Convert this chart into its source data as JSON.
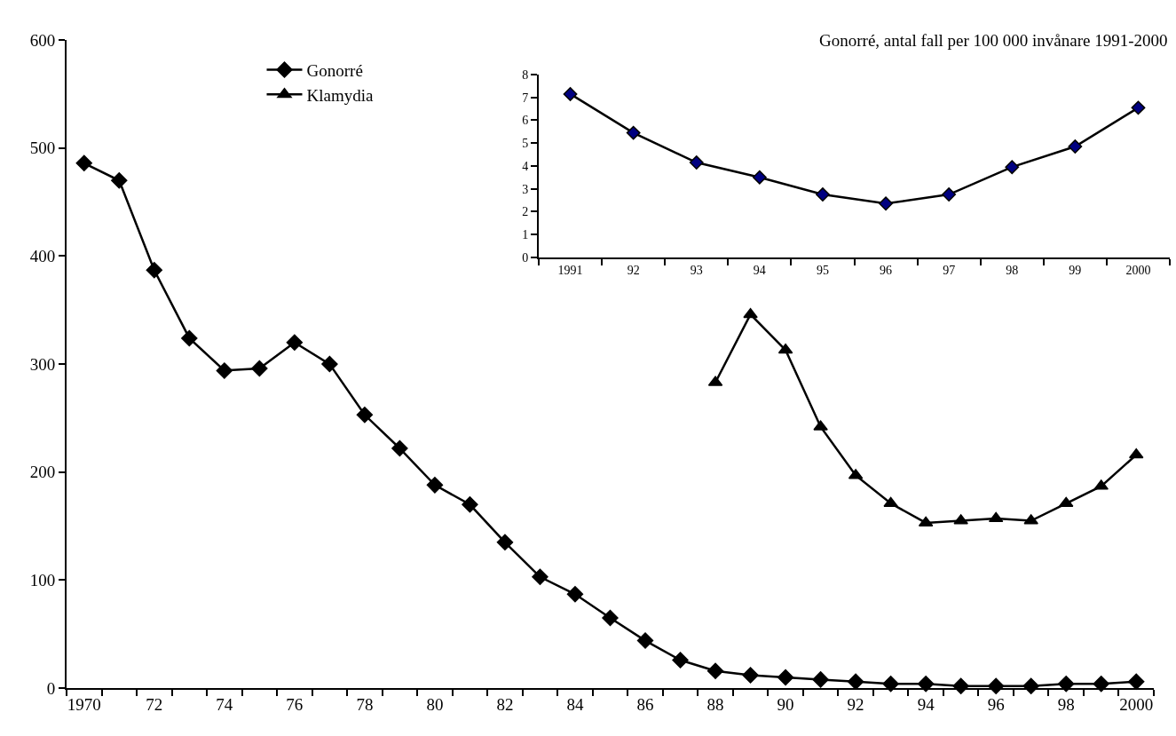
{
  "chart_data": [
    {
      "type": "line",
      "categories": [
        "1970",
        null,
        "72",
        null,
        "74",
        null,
        "76",
        null,
        "78",
        null,
        "80",
        null,
        "82",
        null,
        "84",
        null,
        "86",
        null,
        "88",
        null,
        "90",
        null,
        "92",
        null,
        "94",
        null,
        "96",
        null,
        "98",
        null,
        "2000"
      ],
      "series": [
        {
          "name": "Gonorré",
          "color": "#000000",
          "marker": "diamond",
          "values": [
            486,
            470,
            387,
            324,
            294,
            296,
            320,
            300,
            253,
            222,
            188,
            170,
            135,
            103,
            87,
            65,
            44,
            26,
            16,
            12,
            10,
            8,
            6,
            4,
            4,
            2,
            2,
            2,
            4,
            4,
            6
          ]
        },
        {
          "name": "Klamydia",
          "color": "#000000",
          "marker": "triangle",
          "values": [
            null,
            null,
            null,
            null,
            null,
            null,
            null,
            null,
            null,
            null,
            null,
            null,
            null,
            null,
            null,
            null,
            null,
            null,
            283,
            346,
            313,
            242,
            197,
            171,
            153,
            155,
            157,
            155,
            171,
            187,
            216
          ]
        }
      ],
      "ylim": [
        0,
        600
      ],
      "yticks": [
        0,
        100,
        200,
        300,
        400,
        500,
        600
      ],
      "legend": "top left",
      "line_style": "solid"
    },
    {
      "type": "line",
      "title": "Gonorré, antal fall per 100 000 invånare 1991-2000",
      "categories": [
        "1991",
        "92",
        "93",
        "94",
        "95",
        "96",
        "97",
        "98",
        "99",
        "2000"
      ],
      "series": [
        {
          "color": "#000080",
          "marker": "diamond",
          "values": [
            7.15,
            5.45,
            4.15,
            3.5,
            2.75,
            2.35,
            2.75,
            3.95,
            4.85,
            6.55
          ]
        }
      ],
      "ylim": [
        0,
        8
      ],
      "yticks": [
        0,
        1,
        2,
        3,
        4,
        5,
        6,
        7,
        8
      ],
      "legend": false,
      "line_style": "solid"
    }
  ]
}
